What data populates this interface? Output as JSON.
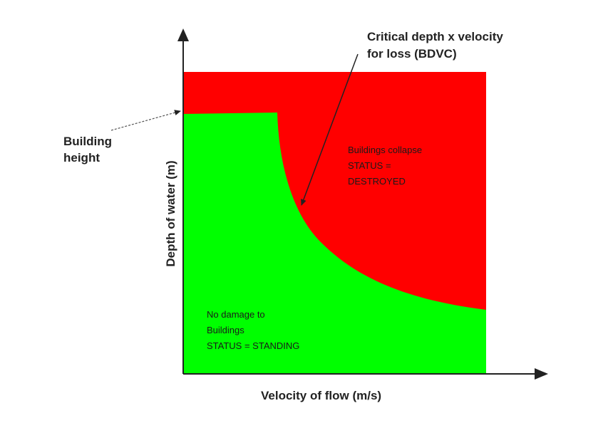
{
  "colors": {
    "danger_zone": "#ff0000",
    "safe_zone": "#00ff00",
    "axis": "#222222",
    "text": "#222222"
  },
  "axes": {
    "x_label": "Velocity of flow (m/s)",
    "y_label": "Depth of water (m)"
  },
  "annotations": {
    "curve_label_line1": "Critical depth x velocity",
    "curve_label_line2": "for loss (BDVC)",
    "height_label_line1": "Building",
    "height_label_line2": "height"
  },
  "zones": {
    "collapse": {
      "line1": "Buildings collapse",
      "line2": "STATUS =",
      "line3": "DESTROYED"
    },
    "standing": {
      "line1": "No damage to",
      "line2": "Buildings",
      "line3": "STATUS = STANDING"
    }
  }
}
